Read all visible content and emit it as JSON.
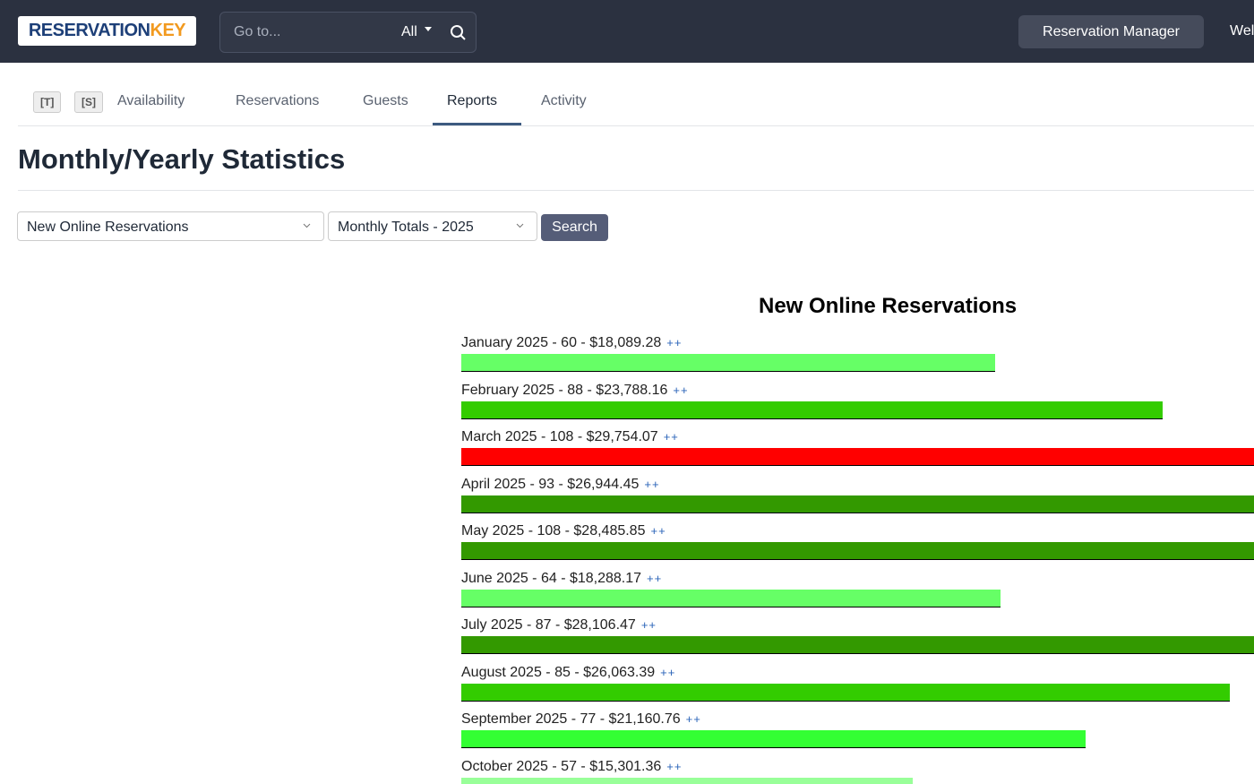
{
  "navbar": {
    "logo": {
      "part1": "RESERVATION",
      "part2": "KEY"
    },
    "search_placeholder": "Go to...",
    "search_scope": "All",
    "manager_button": "Reservation Manager",
    "welcome": "Wel"
  },
  "tabs": {
    "shortcuts": [
      "[T]",
      "[S]"
    ],
    "items": [
      "Availability",
      "Reservations",
      "Guests",
      "Reports",
      "Activity"
    ],
    "active": 3
  },
  "page": {
    "title": "Monthly/Yearly Statistics",
    "report_select": "New Online Reservations",
    "period_select": "Monthly Totals - 2025",
    "search_button": "Search"
  },
  "report": {
    "title": "New Online Reservations",
    "more_link": "++",
    "rows": [
      {
        "label": "January 2025 - 60 - $18,089.28",
        "revenue": 18089.28,
        "color": "#66ff66"
      },
      {
        "label": "February 2025 - 88 - $23,788.16",
        "revenue": 23788.16,
        "color": "#33cc00"
      },
      {
        "label": "March 2025 - 108 - $29,754.07",
        "revenue": 29754.07,
        "color": "#ff0000"
      },
      {
        "label": "April 2025 - 93 - $26,944.45",
        "revenue": 26944.45,
        "color": "#339900"
      },
      {
        "label": "May 2025 - 108 - $28,485.85",
        "revenue": 28485.85,
        "color": "#339900"
      },
      {
        "label": "June 2025 - 64 - $18,288.17",
        "revenue": 18288.17,
        "color": "#66ff66"
      },
      {
        "label": "July 2025 - 87 - $28,106.47",
        "revenue": 28106.47,
        "color": "#339900"
      },
      {
        "label": "August 2025 - 85 - $26,063.39",
        "revenue": 26063.39,
        "color": "#33cc00"
      },
      {
        "label": "September 2025 - 77 - $21,160.76",
        "revenue": 21160.76,
        "color": "#33ff33"
      },
      {
        "label": "October 2025 - 57 - $15,301.36",
        "revenue": 15301.36,
        "color": "#99ff99"
      }
    ]
  }
}
